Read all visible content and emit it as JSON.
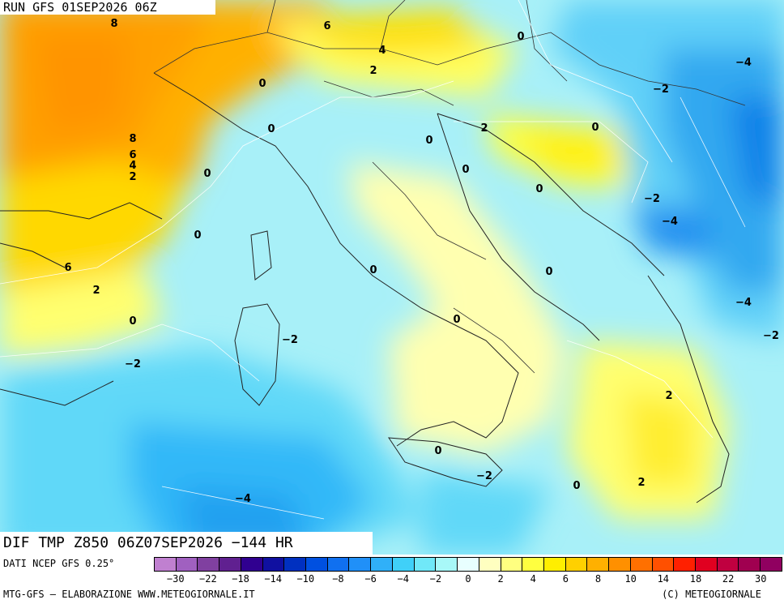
{
  "header": {
    "run_label": "RUN GFS 01SEP2026 06Z"
  },
  "field": {
    "label": "DIF TMP Z850 06Z07SEP2026 −144 HR"
  },
  "source": {
    "label": "DATI NCEP GFS 0.25°"
  },
  "footer": {
    "left": "MTG-GFS — ELABORAZIONE WWW.METEOGIORNALE.IT",
    "right": "(C) METEOGIORNALE"
  },
  "legend": {
    "ticks": [
      "−30",
      "−22",
      "−18",
      "−14",
      "−10",
      "−8",
      "−6",
      "−4",
      "−2",
      "0",
      "2",
      "4",
      "6",
      "8",
      "10",
      "14",
      "18",
      "22",
      "30"
    ],
    "colors": [
      "#c080d0",
      "#a060c0",
      "#8040a0",
      "#602090",
      "#300090",
      "#1010a0",
      "#0030c0",
      "#0050e0",
      "#1070f0",
      "#2090f8",
      "#30b0f8",
      "#40d0f8",
      "#70e8f8",
      "#a8f8f8",
      "#e8ffff",
      "#ffffc0",
      "#ffff80",
      "#ffff40",
      "#ffee00",
      "#ffd000",
      "#ffb000",
      "#ff9000",
      "#ff7000",
      "#ff5000",
      "#ff2000",
      "#e00020",
      "#c00040",
      "#a00050",
      "#900060"
    ]
  },
  "contour_labels": [
    {
      "text": "8"
    },
    {
      "text": "6"
    },
    {
      "text": "0"
    },
    {
      "text": "4"
    },
    {
      "text": "2"
    },
    {
      "text": "0"
    },
    {
      "text": "−4"
    },
    {
      "text": "−2"
    },
    {
      "text": "8"
    },
    {
      "text": "6"
    },
    {
      "text": "4"
    },
    {
      "text": "2"
    },
    {
      "text": "0"
    },
    {
      "text": "0"
    },
    {
      "text": "2"
    },
    {
      "text": "0"
    },
    {
      "text": "0"
    },
    {
      "text": "0"
    },
    {
      "text": "−2"
    },
    {
      "text": "−4"
    },
    {
      "text": "0"
    },
    {
      "text": "6"
    },
    {
      "text": "2"
    },
    {
      "text": "0"
    },
    {
      "text": "0"
    },
    {
      "text": "0"
    },
    {
      "text": "−4"
    },
    {
      "text": "−2"
    },
    {
      "text": "−2"
    },
    {
      "text": "0"
    },
    {
      "text": "−2"
    },
    {
      "text": "2"
    },
    {
      "text": "0"
    },
    {
      "text": "−2"
    },
    {
      "text": "0"
    },
    {
      "text": "2"
    },
    {
      "text": "−4"
    },
    {
      "text": "0"
    }
  ]
}
